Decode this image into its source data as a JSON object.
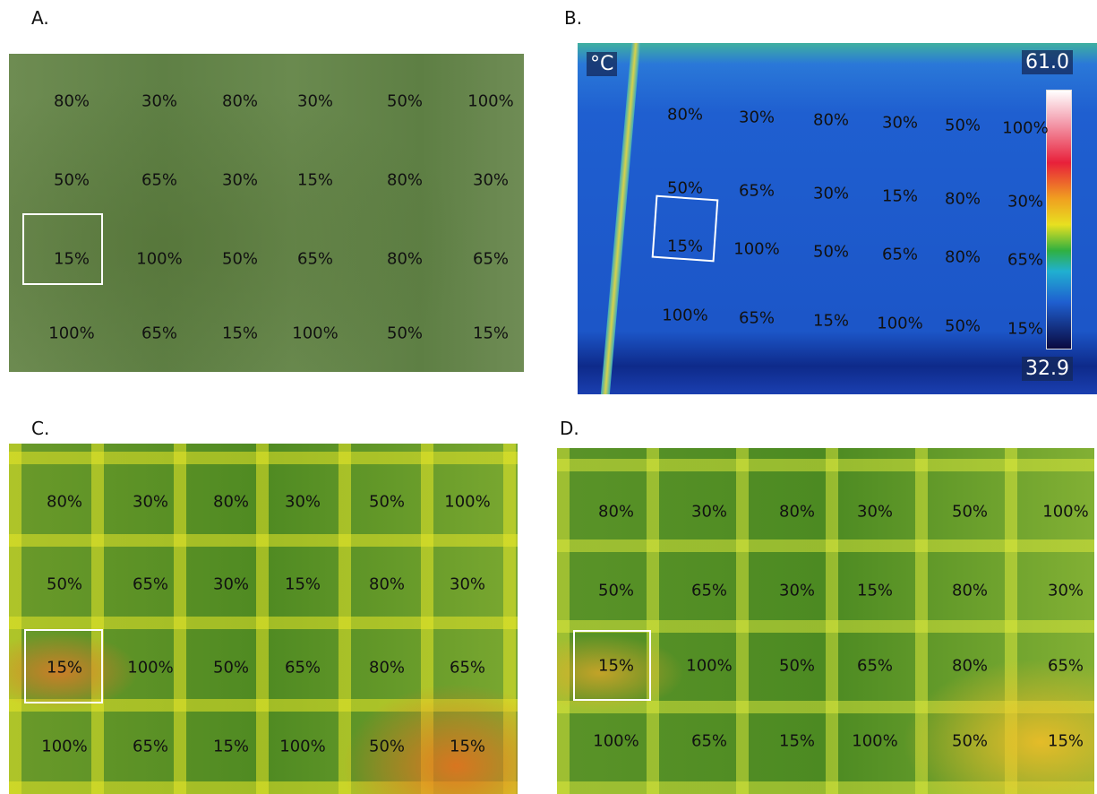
{
  "panels": [
    {
      "label": "A.",
      "rows": [
        [
          "80%",
          "30%",
          "80%",
          "30%",
          "50%",
          "100%"
        ],
        [
          "50%",
          "65%",
          "30%",
          "15%",
          "80%",
          "30%"
        ],
        [
          "15%",
          "100%",
          "50%",
          "65%",
          "80%",
          "65%"
        ],
        [
          "100%",
          "65%",
          "15%",
          "100%",
          "50%",
          "15%"
        ]
      ]
    },
    {
      "label": "B.",
      "rows": [
        [
          "80%",
          "30%",
          "80%",
          "30%",
          "50%",
          "100%"
        ],
        [
          "50%",
          "65%",
          "30%",
          "15%",
          "80%",
          "30%"
        ],
        [
          "15%",
          "100%",
          "50%",
          "65%",
          "80%",
          "65%"
        ],
        [
          "100%",
          "65%",
          "15%",
          "100%",
          "50%",
          "15%"
        ]
      ],
      "scale": {
        "unit": "°C",
        "max": "61.0",
        "min": "32.9"
      }
    },
    {
      "label": "C.",
      "rows": [
        [
          "80%",
          "30%",
          "80%",
          "30%",
          "50%",
          "100%"
        ],
        [
          "50%",
          "65%",
          "30%",
          "15%",
          "80%",
          "30%"
        ],
        [
          "15%",
          "100%",
          "50%",
          "65%",
          "80%",
          "65%"
        ],
        [
          "100%",
          "65%",
          "15%",
          "100%",
          "50%",
          "15%"
        ]
      ]
    },
    {
      "label": "D.",
      "rows": [
        [
          "80%",
          "30%",
          "80%",
          "30%",
          "50%",
          "100%"
        ],
        [
          "50%",
          "65%",
          "30%",
          "15%",
          "80%",
          "30%"
        ],
        [
          "15%",
          "100%",
          "50%",
          "65%",
          "80%",
          "65%"
        ],
        [
          "100%",
          "65%",
          "15%",
          "100%",
          "50%",
          "15%"
        ]
      ]
    }
  ]
}
